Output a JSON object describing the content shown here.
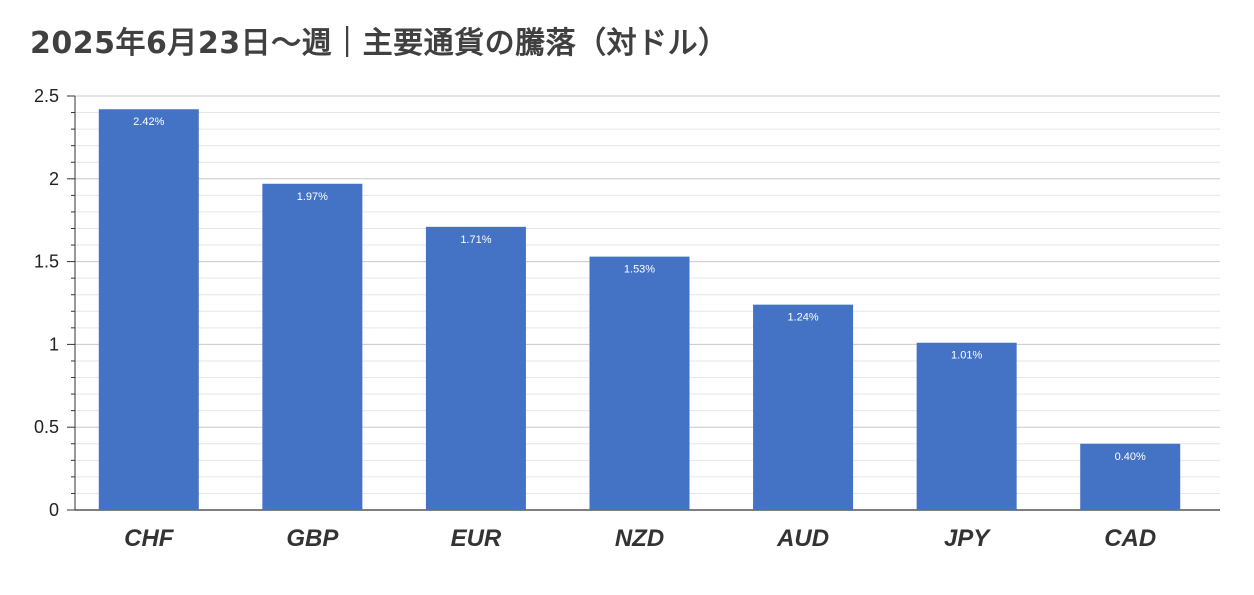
{
  "chart_data": {
    "type": "bar",
    "title": "2025年6月23日〜週｜主要通貨の騰落（対ドル）",
    "categories": [
      "CHF",
      "GBP",
      "EUR",
      "NZD",
      "AUD",
      "JPY",
      "CAD"
    ],
    "values": [
      2.42,
      1.97,
      1.71,
      1.53,
      1.24,
      1.01,
      0.4
    ],
    "data_labels": [
      "2.42%",
      "1.97%",
      "1.71%",
      "1.53%",
      "1.24%",
      "1.01%",
      "0.40%"
    ],
    "ylim": [
      0,
      2.5
    ],
    "yticks": [
      0,
      0.5,
      1,
      1.5,
      2,
      2.5
    ],
    "ytick_labels": [
      "0",
      "0.5",
      "1",
      "1.5",
      "2",
      "2.5"
    ],
    "xlabel": "",
    "ylabel": "",
    "bar_color": "#4472c4",
    "grid": true,
    "legend": "none"
  }
}
